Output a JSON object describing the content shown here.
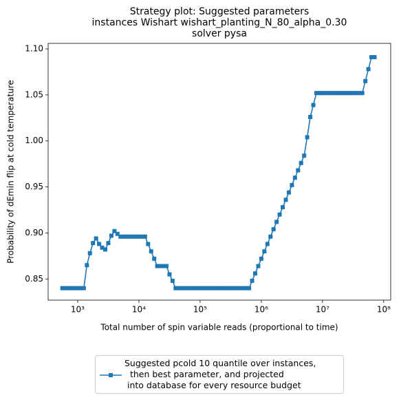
{
  "chart_data": {
    "type": "line",
    "title": "Strategy plot: Suggested parameters\ninstances Wishart wishart_planting_N_80_alpha_0.30\nsolver pysa",
    "xlabel": "Total number of spin variable reads (proportional to time)",
    "ylabel": "Probability of dEmin flip at cold temperature",
    "xscale": "log",
    "xlim": [
      329,
      130000000
    ],
    "ylim": [
      0.827,
      1.106
    ],
    "xticks": [
      {
        "value": 1000,
        "label": "10³"
      },
      {
        "value": 10000,
        "label": "10⁴"
      },
      {
        "value": 100000,
        "label": "10⁵"
      },
      {
        "value": 1000000,
        "label": "10⁶"
      },
      {
        "value": 10000000,
        "label": "10⁷"
      },
      {
        "value": 100000000,
        "label": "10⁸"
      }
    ],
    "yticks": [
      0.85,
      {
        "value": 0.9,
        "label": "0.90"
      },
      0.95,
      {
        "value": 1.0,
        "label": "1.00"
      },
      1.05,
      {
        "value": 1.1,
        "label": "1.10"
      }
    ],
    "grid": false,
    "legend": "bottom",
    "x": [
      562,
      631,
      708,
      794,
      891,
      1000,
      1122,
      1259,
      1413,
      1585,
      1778,
      1995,
      2239,
      2512,
      2818,
      3162,
      3548,
      3981,
      4467,
      5012,
      5623,
      6310,
      7079,
      7943,
      8913,
      10000,
      11220,
      12590,
      14130,
      15850,
      17780,
      19950,
      22390,
      25120,
      28180,
      31620,
      35480,
      39810,
      44670,
      50120,
      56230,
      63100,
      70790,
      79430,
      89130,
      100000,
      112200,
      125900,
      141300,
      158500,
      177800,
      199500,
      223900,
      251200,
      281800,
      316200,
      354800,
      398100,
      446700,
      501200,
      562300,
      631000,
      707900,
      794300,
      891300,
      1000000,
      1122000,
      1259000,
      1413000,
      1585000,
      1778000,
      1995000,
      2239000,
      2512000,
      2818000,
      3162000,
      3548000,
      3981000,
      4467000,
      5012000,
      5623000,
      6310000,
      7079000,
      7943000,
      8913000,
      10000000,
      11220000,
      12590000,
      14130000,
      15850000,
      17780000,
      19950000,
      22390000,
      25120000,
      28180000,
      31620000,
      35480000,
      39810000,
      44670000,
      50120000,
      56230000,
      63100000,
      70790000
    ],
    "series": [
      {
        "name": "Suggested pcold 10 quantile over instances,\n  then best parameter, and projected\n into database for every resource budget",
        "color": "#1f77b4",
        "values": [
          0.84,
          0.84,
          0.84,
          0.84,
          0.84,
          0.84,
          0.84,
          0.84,
          0.865,
          0.878,
          0.889,
          0.894,
          0.888,
          0.884,
          0.882,
          0.889,
          0.897,
          0.902,
          0.899,
          0.896,
          0.896,
          0.896,
          0.896,
          0.896,
          0.896,
          0.896,
          0.896,
          0.896,
          0.888,
          0.88,
          0.872,
          0.864,
          0.864,
          0.864,
          0.864,
          0.855,
          0.848,
          0.84,
          0.84,
          0.84,
          0.84,
          0.84,
          0.84,
          0.84,
          0.84,
          0.84,
          0.84,
          0.84,
          0.84,
          0.84,
          0.84,
          0.84,
          0.84,
          0.84,
          0.84,
          0.84,
          0.84,
          0.84,
          0.84,
          0.84,
          0.84,
          0.84,
          0.848,
          0.856,
          0.864,
          0.872,
          0.88,
          0.888,
          0.896,
          0.904,
          0.912,
          0.92,
          0.928,
          0.936,
          0.944,
          0.952,
          0.96,
          0.968,
          0.976,
          0.984,
          1.004,
          1.026,
          1.039,
          1.052,
          1.052,
          1.052,
          1.052,
          1.052,
          1.052,
          1.052,
          1.052,
          1.052,
          1.052,
          1.052,
          1.052,
          1.052,
          1.052,
          1.052,
          1.052,
          1.065,
          1.078,
          1.091,
          1.091
        ]
      }
    ]
  }
}
